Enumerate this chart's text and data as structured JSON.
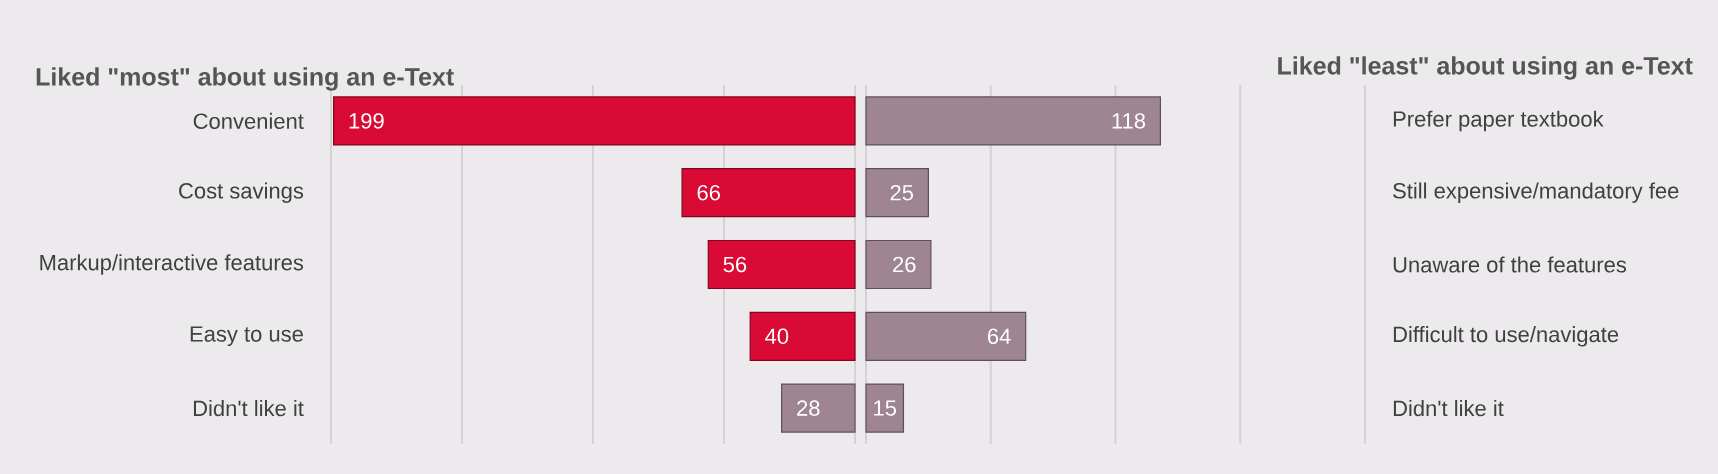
{
  "chart_data": [
    {
      "type": "bar",
      "orientation": "horizontal",
      "title": "Liked \"most\" about using an e-Text",
      "categories": [
        "Convenient",
        "Cost savings",
        "Markup/interactive features",
        "Easy to use",
        "Didn't like it"
      ],
      "values": [
        199,
        66,
        56,
        40,
        28
      ],
      "colors": [
        "#d90a34",
        "#d90a34",
        "#d90a34",
        "#d90a34",
        "#9e8591"
      ],
      "xlim": [
        200,
        0
      ],
      "xticks": [
        {
          "value": 0,
          "label": null
        },
        {
          "value": 50,
          "label": null
        },
        {
          "value": 100,
          "label": null
        },
        {
          "value": 150,
          "label": null
        },
        {
          "value": 200,
          "label": null
        }
      ],
      "grid": "x",
      "data_labels": true,
      "tick_labels": "y"
    },
    {
      "type": "bar",
      "orientation": "horizontal",
      "title": "Liked \"least\" about using an e-Text",
      "categories": [
        "Prefer paper textbook",
        "Still expensive/mandatory fee",
        "Unaware of the features",
        "Difficult to use/navigate",
        "Didn't like it"
      ],
      "values": [
        118,
        25,
        26,
        64,
        15
      ],
      "color": "#9e8591",
      "xlim": [
        0,
        200
      ],
      "xticks": [
        {
          "value": 0,
          "label": null
        },
        {
          "value": 50,
          "label": null
        },
        {
          "value": 100,
          "label": null
        },
        {
          "value": 150,
          "label": null
        },
        {
          "value": 200,
          "label": null
        }
      ],
      "grid": "x",
      "data_labels": true,
      "tick_labels": "y"
    }
  ]
}
